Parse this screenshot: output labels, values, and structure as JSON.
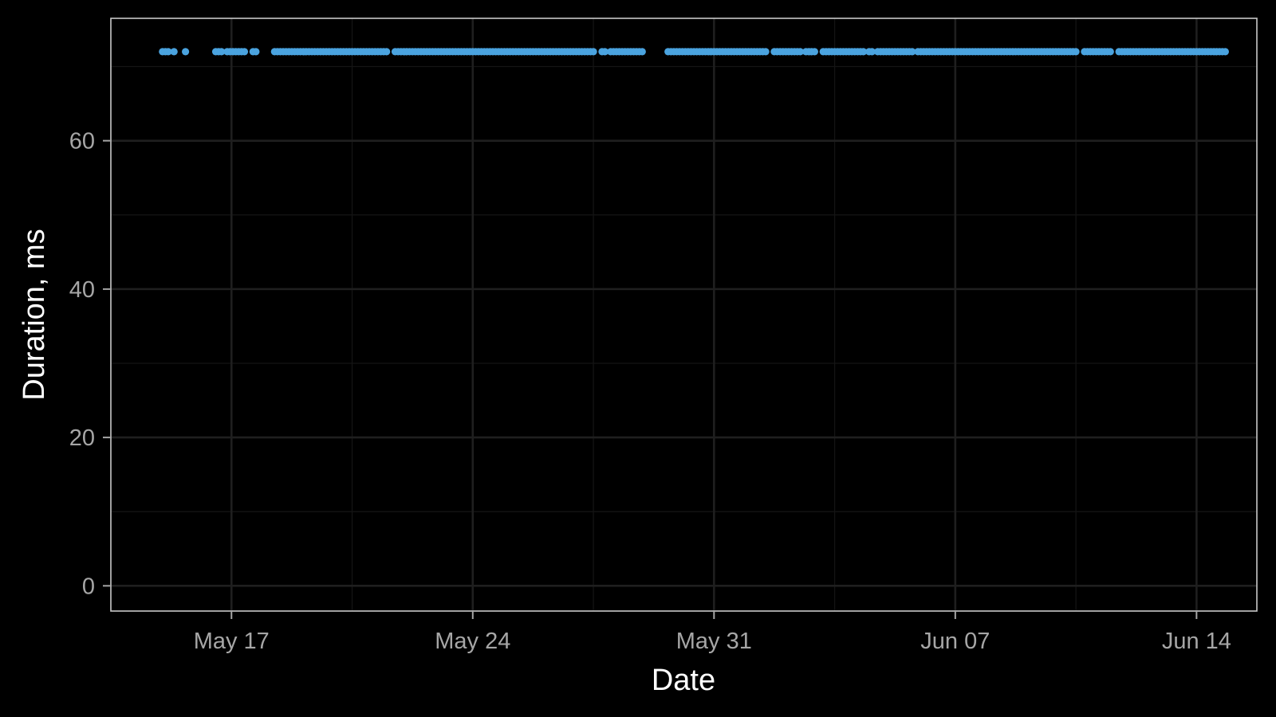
{
  "chart_data": {
    "type": "scatter",
    "xlabel": "Date",
    "ylabel": "Duration, ms",
    "x_axis_type": "date",
    "xlim": [
      "2021-05-13T12:00",
      "2021-06-15T18:00"
    ],
    "ylim": [
      -3.4,
      76.5
    ],
    "x_ticks": [
      {
        "date": "2021-05-17",
        "label": "May 17"
      },
      {
        "date": "2021-05-24",
        "label": "May 24"
      },
      {
        "date": "2021-05-31",
        "label": "May 31"
      },
      {
        "date": "2021-06-07",
        "label": "Jun 07"
      },
      {
        "date": "2021-06-14",
        "label": "Jun 14"
      }
    ],
    "y_ticks": [
      0,
      20,
      40,
      60
    ],
    "grid": true,
    "colors": {
      "background": "#000000",
      "panel": "#000000",
      "grid_major": "#1f1f1f",
      "grid_minor": "#141414",
      "points": "#4aa3df",
      "tick_text": "#a6a6a6",
      "title_text": "#ffffff",
      "border": "#c8c8c8"
    },
    "series": [
      {
        "y": 72,
        "approximate": true,
        "coverage": [
          {
            "start": "2021-05-15T00:00",
            "end": "2021-05-15T04:00"
          },
          {
            "start": "2021-05-15T08:00",
            "end": "2021-05-15T08:00"
          },
          {
            "start": "2021-05-15T16:00",
            "end": "2021-05-15T16:00"
          },
          {
            "start": "2021-05-16T13:00",
            "end": "2021-05-16T18:00"
          },
          {
            "start": "2021-05-16T21:00",
            "end": "2021-05-17T10:00"
          },
          {
            "start": "2021-05-17T15:00",
            "end": "2021-05-17T18:00"
          },
          {
            "start": "2021-05-18T06:00",
            "end": "2021-05-21T12:00"
          },
          {
            "start": "2021-05-21T18:00",
            "end": "2021-05-27T12:00"
          },
          {
            "start": "2021-05-27T18:00",
            "end": "2021-05-27T20:00"
          },
          {
            "start": "2021-05-28T00:00",
            "end": "2021-05-28T23:00"
          },
          {
            "start": "2021-05-29T16:00",
            "end": "2021-06-01T12:00"
          },
          {
            "start": "2021-06-01T18:00",
            "end": "2021-06-02T12:00"
          },
          {
            "start": "2021-06-02T16:00",
            "end": "2021-06-02T22:00"
          },
          {
            "start": "2021-06-03T04:00",
            "end": "2021-06-04T08:00"
          },
          {
            "start": "2021-06-04T12:00",
            "end": "2021-06-04T14:00"
          },
          {
            "start": "2021-06-04T18:00",
            "end": "2021-06-05T18:00"
          },
          {
            "start": "2021-06-05T22:00",
            "end": "2021-06-10T12:00"
          },
          {
            "start": "2021-06-10T18:00",
            "end": "2021-06-11T12:00"
          },
          {
            "start": "2021-06-11T18:00",
            "end": "2021-06-14T20:00"
          }
        ]
      }
    ]
  }
}
